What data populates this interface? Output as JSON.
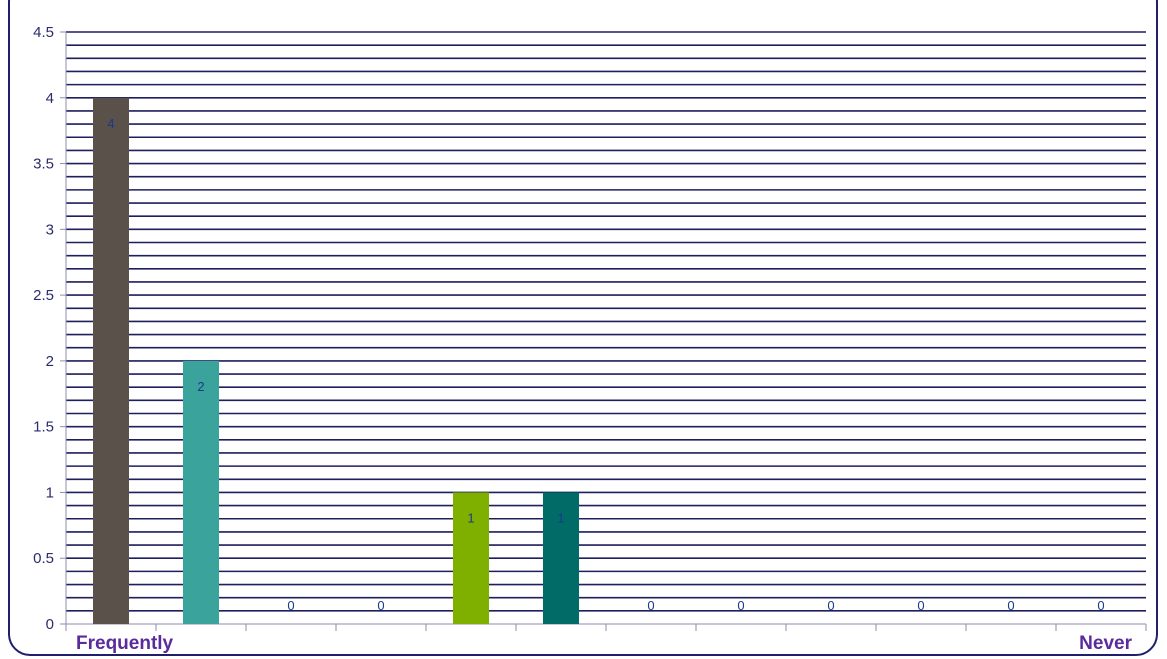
{
  "chart_data": {
    "type": "bar",
    "title": "",
    "xlabel": "",
    "ylabel": "",
    "ylim": [
      0,
      4.5
    ],
    "yticks": [
      0,
      0.5,
      1,
      1.5,
      2,
      2.5,
      3,
      3.5,
      4,
      4.5
    ],
    "ytick_labels": [
      "0",
      "0.5",
      "1",
      "1.5",
      "2",
      "2.5",
      "3",
      "3.5",
      "4",
      "4.5"
    ],
    "grid": true,
    "legend": "none",
    "categories": [
      "Frequently",
      "",
      "",
      "",
      "",
      "",
      "",
      "",
      "",
      "",
      "",
      "Never"
    ],
    "values": [
      4,
      2,
      0,
      0,
      1,
      1,
      0,
      0,
      0,
      0,
      0,
      0
    ],
    "data_labels": [
      "4",
      "2",
      "0",
      "0",
      "1",
      "1",
      "0",
      "0",
      "0",
      "0",
      "0",
      "0"
    ],
    "bar_colors": [
      "#5a514b",
      "#3aa39b",
      "#3aa39b",
      "#3aa39b",
      "#7fb000",
      "#006b67",
      "#3aa39b",
      "#3aa39b",
      "#3aa39b",
      "#3aa39b",
      "#3aa39b",
      "#3aa39b"
    ],
    "gridline_color": "#1f1f5e",
    "axis_color": "#8e8eaa"
  }
}
